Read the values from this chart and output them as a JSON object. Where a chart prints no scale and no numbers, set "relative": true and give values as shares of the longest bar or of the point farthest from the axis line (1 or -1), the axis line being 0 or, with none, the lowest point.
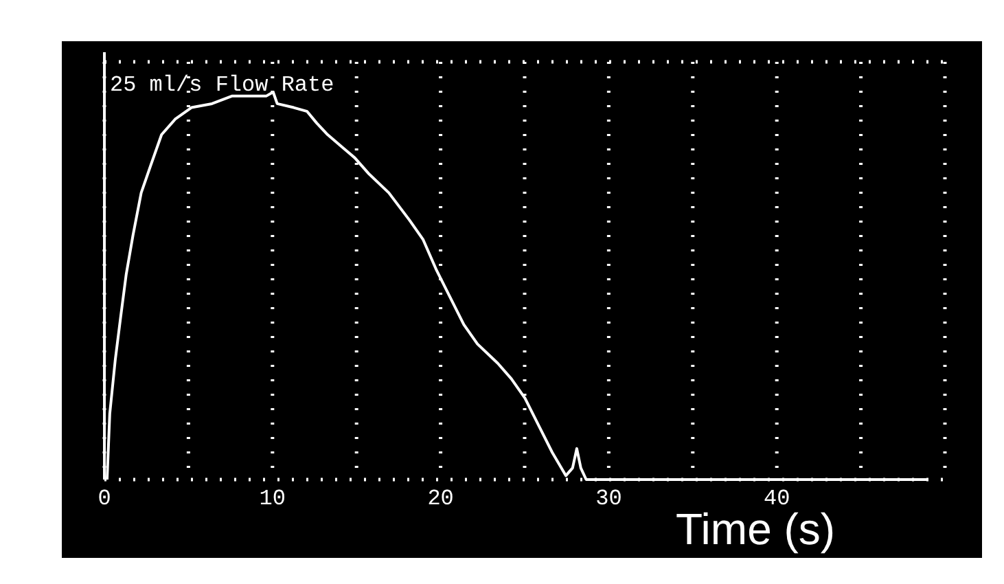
{
  "chart_data": {
    "type": "line",
    "relative": true,
    "title": "25 ml/s Flow Rate",
    "xlabel": "Time (s)",
    "xlim": [
      0,
      50
    ],
    "xticks": [
      0,
      {
        "value": 5,
        "label": null
      },
      10,
      {
        "value": 15,
        "label": null
      },
      20,
      {
        "value": 25,
        "label": null
      },
      30,
      {
        "value": 35,
        "label": null
      },
      40,
      {
        "value": 45,
        "label": null
      },
      {
        "value": 50,
        "label": null
      }
    ],
    "grid": "x",
    "marker": "none",
    "line_style": "solid",
    "series": [
      {
        "color": "#ffffff",
        "x": [
          0.16,
          0.32,
          0.65,
          0.97,
          1.3,
          1.7,
          2.19,
          2.75,
          3.4,
          4.21,
          5.18,
          6.4,
          7.61,
          8.83,
          9.64,
          10.04,
          10.28,
          11.26,
          12.06,
          12.63,
          13.28,
          14.09,
          14.9,
          15.71,
          16.92,
          18.14,
          18.95,
          19.76,
          20.57,
          21.38,
          22.19,
          23.4,
          24.21,
          25.02,
          25.83,
          26.64,
          27.45,
          27.85,
          28.1,
          28.34,
          28.66,
          29.47,
          48.9
        ],
        "values": [
          0,
          0.17,
          0.31,
          0.42,
          0.53,
          0.63,
          0.74,
          0.81,
          0.89,
          0.93,
          0.96,
          0.97,
          0.99,
          0.99,
          0.99,
          1,
          0.97,
          0.96,
          0.95,
          0.92,
          0.89,
          0.86,
          0.83,
          0.79,
          0.74,
          0.67,
          0.62,
          0.54,
          0.47,
          0.4,
          0.35,
          0.3,
          0.26,
          0.21,
          0.14,
          0.07,
          0.01,
          0.03,
          0.08,
          0.03,
          0,
          0,
          0
        ]
      }
    ]
  }
}
